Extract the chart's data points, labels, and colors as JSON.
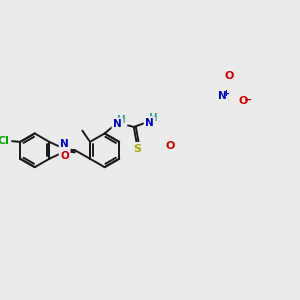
{
  "bg_color": "#ebebeb",
  "bond_color": "#1a1a1a",
  "bond_width": 1.4,
  "atom_colors": {
    "N": "#0000cc",
    "O": "#cc0000",
    "S": "#aaaa00",
    "Cl": "#00aa00",
    "NH": "#339999",
    "H": "#339999",
    "C": "#1a1a1a",
    "plus": "#0000cc",
    "minus": "#cc0000"
  },
  "figsize": [
    3.0,
    3.0
  ],
  "dpi": 100
}
